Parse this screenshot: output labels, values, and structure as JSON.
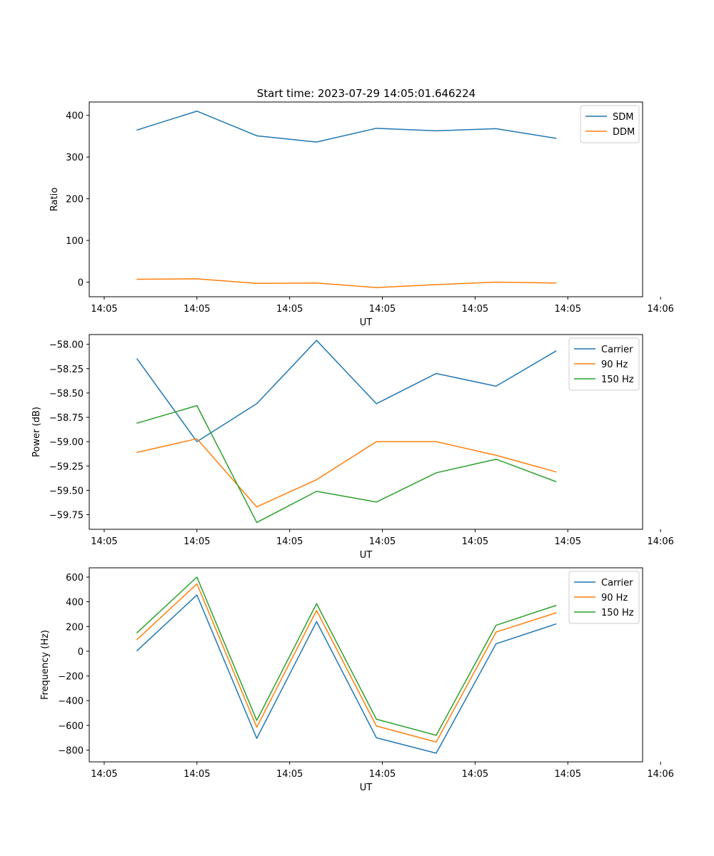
{
  "figure_title": "Start time: 2023-07-29 14:05:01.646224",
  "colors": {
    "blue": "#1f77b4",
    "orange": "#ff7f0e",
    "green": "#2ca02c"
  },
  "chart_data": [
    {
      "type": "line",
      "title": "Start time: 2023-07-29 14:05:01.646224",
      "xlabel": "UT",
      "ylabel": "Ratio",
      "x": [
        1,
        2,
        3,
        4,
        5,
        6,
        7,
        8
      ],
      "xlim": [
        0.2,
        9.45
      ],
      "x_ticks": [
        0.45,
        2.0,
        3.55,
        5.1,
        6.65,
        8.2,
        9.75
      ],
      "x_tick_labels": [
        "14:05",
        "14:05",
        "14:05",
        "14:05",
        "14:05",
        "14:05",
        "14:06"
      ],
      "ylim": [
        -35,
        432
      ],
      "y_ticks": [
        0,
        100,
        200,
        300,
        400
      ],
      "y_tick_labels": [
        "0",
        "100",
        "200",
        "300",
        "400"
      ],
      "legend_position": "top-right",
      "series": [
        {
          "name": "SDM",
          "color": "#1f77b4",
          "values": [
            365,
            410,
            351,
            336,
            369,
            363,
            368,
            345
          ]
        },
        {
          "name": "DDM",
          "color": "#ff7f0e",
          "values": [
            7,
            8,
            -3,
            -2,
            -13,
            -6,
            0,
            -2
          ]
        }
      ]
    },
    {
      "type": "line",
      "title": "",
      "xlabel": "UT",
      "ylabel": "Power (dB)",
      "x": [
        1,
        2,
        3,
        4,
        5,
        6,
        7,
        8
      ],
      "xlim": [
        0.2,
        9.45
      ],
      "x_ticks": [
        0.45,
        2.0,
        3.55,
        5.1,
        6.65,
        8.2,
        9.75
      ],
      "x_tick_labels": [
        "14:05",
        "14:05",
        "14:05",
        "14:05",
        "14:05",
        "14:05",
        "14:06"
      ],
      "ylim": [
        -59.9,
        -57.9
      ],
      "y_ticks": [
        -58.0,
        -58.25,
        -58.5,
        -58.75,
        -59.0,
        -59.25,
        -59.5,
        -59.75
      ],
      "y_tick_labels": [
        "−58.00",
        "−58.25",
        "−58.50",
        "−58.75",
        "−59.00",
        "−59.25",
        "−59.50",
        "−59.75"
      ],
      "legend_position": "top-right",
      "series": [
        {
          "name": "Carrier",
          "color": "#1f77b4",
          "values": [
            -58.15,
            -59.0,
            -58.61,
            -57.96,
            -58.61,
            -58.3,
            -58.43,
            -58.07
          ]
        },
        {
          "name": "90 Hz",
          "color": "#ff7f0e",
          "values": [
            -59.11,
            -58.97,
            -59.67,
            -59.39,
            -59.0,
            -59.0,
            -59.14,
            -59.31
          ]
        },
        {
          "name": "150 Hz",
          "color": "#2ca02c",
          "values": [
            -58.81,
            -58.63,
            -59.83,
            -59.51,
            -59.62,
            -59.32,
            -59.18,
            -59.41
          ]
        }
      ]
    },
    {
      "type": "line",
      "title": "",
      "xlabel": "UT",
      "ylabel": "Frequency (Hz)",
      "x": [
        1,
        2,
        3,
        4,
        5,
        6,
        7,
        8
      ],
      "xlim": [
        0.2,
        9.45
      ],
      "x_ticks": [
        0.45,
        2.0,
        3.55,
        5.1,
        6.65,
        8.2,
        9.75
      ],
      "x_tick_labels": [
        "14:05",
        "14:05",
        "14:05",
        "14:05",
        "14:05",
        "14:05",
        "14:06"
      ],
      "ylim": [
        -895,
        675
      ],
      "y_ticks": [
        600,
        400,
        200,
        0,
        -200,
        -400,
        -600,
        -800
      ],
      "y_tick_labels": [
        "600",
        "400",
        "200",
        "0",
        "−200",
        "−400",
        "−600",
        "−800"
      ],
      "legend_position": "top-right",
      "series": [
        {
          "name": "Carrier",
          "color": "#1f77b4",
          "values": [
            5,
            455,
            -705,
            240,
            -700,
            -825,
            60,
            220
          ]
        },
        {
          "name": "90 Hz",
          "color": "#ff7f0e",
          "values": [
            95,
            545,
            -615,
            330,
            -605,
            -735,
            155,
            310
          ]
        },
        {
          "name": "150 Hz",
          "color": "#2ca02c",
          "values": [
            150,
            600,
            -560,
            385,
            -550,
            -680,
            210,
            370
          ]
        }
      ]
    }
  ]
}
